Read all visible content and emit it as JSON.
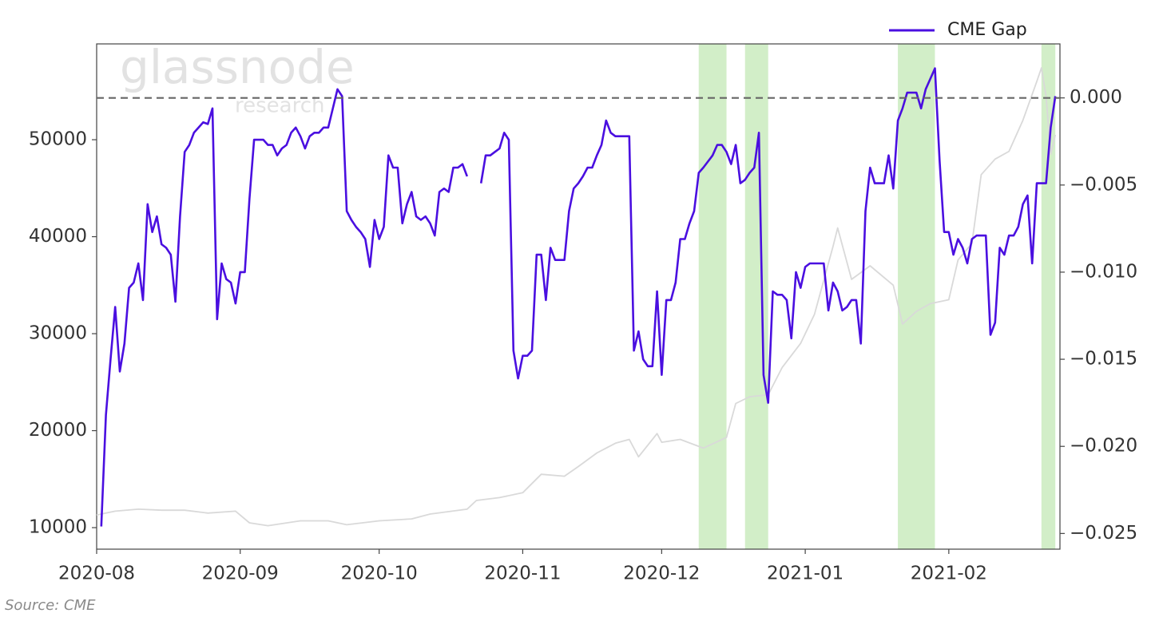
{
  "chart_data": {
    "type": "line",
    "series": [
      {
        "name": "CME Gap",
        "color": "#4a0fe0",
        "axis": "y2",
        "x": [
          "2020-08-02",
          "2020-08-03",
          "2020-08-04",
          "2020-08-05",
          "2020-08-06",
          "2020-08-07",
          "2020-08-08",
          "2020-08-09",
          "2020-08-10",
          "2020-08-11",
          "2020-08-12",
          "2020-08-13",
          "2020-08-14",
          "2020-08-15",
          "2020-08-16",
          "2020-08-17",
          "2020-08-18",
          "2020-08-19",
          "2020-08-20",
          "2020-08-21",
          "2020-08-22",
          "2020-08-23",
          "2020-08-24",
          "2020-08-25",
          "2020-08-26",
          "2020-08-27",
          "2020-08-28",
          "2020-08-29",
          "2020-08-30",
          "2020-08-31",
          "2020-09-01",
          "2020-09-02",
          "2020-09-03",
          "2020-09-04",
          "2020-09-05",
          "2020-09-06",
          "2020-09-07",
          "2020-09-08",
          "2020-09-09",
          "2020-09-10",
          "2020-09-11",
          "2020-09-12",
          "2020-09-13",
          "2020-09-14",
          "2020-09-15",
          "2020-09-16",
          "2020-09-17",
          "2020-09-18",
          "2020-09-19",
          "2020-09-20",
          "2020-09-21",
          "2020-09-22",
          "2020-09-23",
          "2020-09-24",
          "2020-09-25",
          "2020-09-26",
          "2020-09-27",
          "2020-09-28",
          "2020-09-29",
          "2020-09-30",
          "2020-10-01",
          "2020-10-02",
          "2020-10-03",
          "2020-10-04",
          "2020-10-05",
          "2020-10-06",
          "2020-10-07",
          "2020-10-08",
          "2020-10-09",
          "2020-10-10",
          "2020-10-11",
          "2020-10-12",
          "2020-10-13",
          "2020-10-14",
          "2020-10-15",
          "2020-10-16",
          "2020-10-17",
          "2020-10-18",
          "2020-10-19",
          "2020-10-20",
          "2020-10-22",
          "2020-10-23",
          "2020-10-24",
          "2020-10-25",
          "2020-10-26",
          "2020-10-27",
          "2020-10-28",
          "2020-10-29",
          "2020-10-30",
          "2020-10-31",
          "2020-11-01",
          "2020-11-02",
          "2020-11-03",
          "2020-11-04",
          "2020-11-05",
          "2020-11-06",
          "2020-11-07",
          "2020-11-08",
          "2020-11-09",
          "2020-11-10",
          "2020-11-11",
          "2020-11-12",
          "2020-11-13",
          "2020-11-14",
          "2020-11-15",
          "2020-11-16",
          "2020-11-17",
          "2020-11-18",
          "2020-11-19",
          "2020-11-20",
          "2020-11-21",
          "2020-11-22",
          "2020-11-23",
          "2020-11-24",
          "2020-11-25",
          "2020-11-26",
          "2020-11-27",
          "2020-11-28",
          "2020-11-29",
          "2020-11-30",
          "2020-12-01",
          "2020-12-02",
          "2020-12-03",
          "2020-12-04",
          "2020-12-05",
          "2020-12-06",
          "2020-12-07",
          "2020-12-08",
          "2020-12-09",
          "2020-12-10",
          "2020-12-12",
          "2020-12-13",
          "2020-12-14",
          "2020-12-15",
          "2020-12-16",
          "2020-12-17",
          "2020-12-18",
          "2020-12-19",
          "2020-12-20",
          "2020-12-21",
          "2020-12-22",
          "2020-12-23",
          "2020-12-24",
          "2020-12-25",
          "2020-12-26",
          "2020-12-27",
          "2020-12-28",
          "2020-12-29",
          "2020-12-30",
          "2020-12-31",
          "2021-01-01",
          "2021-01-02",
          "2021-01-04",
          "2021-01-05",
          "2021-01-06",
          "2021-01-07",
          "2021-01-08",
          "2021-01-09",
          "2021-01-10",
          "2021-01-11",
          "2021-01-12",
          "2021-01-13",
          "2021-01-14",
          "2021-01-15",
          "2021-01-16",
          "2021-01-17",
          "2021-01-18",
          "2021-01-19",
          "2021-01-20",
          "2021-01-21",
          "2021-01-22",
          "2021-01-23",
          "2021-01-24",
          "2021-01-25",
          "2021-01-26",
          "2021-01-27",
          "2021-01-29",
          "2021-01-30",
          "2021-01-31",
          "2021-02-01",
          "2021-02-02",
          "2021-02-03",
          "2021-02-04",
          "2021-02-05",
          "2021-02-06",
          "2021-02-07",
          "2021-02-08",
          "2021-02-09",
          "2021-02-10",
          "2021-02-11",
          "2021-02-12",
          "2021-02-13",
          "2021-02-14",
          "2021-02-15",
          "2021-02-16",
          "2021-02-17",
          "2021-02-18",
          "2021-02-19",
          "2021-02-20",
          "2021-02-21",
          "2021-02-22",
          "2021-02-23",
          "2021-02-24"
        ],
        "values": [
          -0.0246,
          -0.0182,
          -0.015,
          -0.012,
          -0.0157,
          -0.0141,
          -0.0109,
          -0.0106,
          -0.0095,
          -0.0116,
          -0.0061,
          -0.0077,
          -0.0068,
          -0.0084,
          -0.0086,
          -0.009,
          -0.0117,
          -0.0068,
          -0.0031,
          -0.0027,
          -0.002,
          -0.0017,
          -0.0014,
          -0.0015,
          -0.0006,
          -0.0127,
          -0.0095,
          -0.0104,
          -0.0106,
          -0.0118,
          -0.01,
          -0.01,
          -0.0058,
          -0.0024,
          -0.0024,
          -0.0024,
          -0.0027,
          -0.0027,
          -0.0033,
          -0.0029,
          -0.0027,
          -0.002,
          -0.0017,
          -0.0022,
          -0.0029,
          -0.0022,
          -0.002,
          -0.002,
          -0.0017,
          -0.0017,
          -0.0006,
          0.0005,
          0.0001,
          -0.0065,
          -0.007,
          -0.0074,
          -0.0077,
          -0.0081,
          -0.0097,
          -0.007,
          -0.0081,
          -0.0074,
          -0.0033,
          -0.004,
          -0.004,
          -0.0072,
          -0.0061,
          -0.0054,
          -0.0068,
          -0.007,
          -0.0068,
          -0.0072,
          -0.0079,
          -0.0054,
          -0.0052,
          -0.0054,
          -0.004,
          -0.004,
          -0.0038,
          -0.0045,
          null,
          -0.0049,
          -0.0033,
          -0.0033,
          -0.0031,
          -0.0029,
          -0.002,
          -0.0024,
          -0.0145,
          -0.0161,
          -0.0148,
          -0.0148,
          -0.0145,
          -0.009,
          -0.009,
          -0.0116,
          -0.0086,
          -0.0093,
          -0.0093,
          -0.0093,
          -0.0065,
          -0.0052,
          -0.0049,
          -0.0045,
          -0.004,
          -0.004,
          -0.0033,
          -0.0027,
          -0.0013,
          -0.002,
          -0.0022,
          -0.0022,
          -0.0022,
          -0.0022,
          -0.0145,
          -0.0134,
          -0.015,
          -0.0154,
          -0.0154,
          -0.0111,
          -0.0159,
          -0.0116,
          -0.0116,
          -0.0106,
          -0.0081,
          -0.0081,
          -0.0072,
          -0.0065,
          -0.0043,
          -0.004,
          -0.0033,
          -0.0027,
          -0.0027,
          -0.0031,
          -0.0038,
          -0.0027,
          -0.0049,
          -0.0047,
          -0.0043,
          -0.004,
          -0.002,
          -0.0159,
          -0.0175,
          -0.0111,
          -0.0113,
          -0.0113,
          -0.0116,
          -0.0138,
          -0.01,
          -0.0109,
          -0.0097,
          -0.0095,
          -0.0095,
          -0.0095,
          -0.0122,
          -0.0106,
          -0.0111,
          -0.0122,
          -0.012,
          -0.0116,
          -0.0116,
          -0.0141,
          -0.0065,
          -0.004,
          -0.0049,
          -0.0049,
          -0.0049,
          -0.0033,
          -0.0052,
          -0.0013,
          -0.0006,
          0.0003,
          0.0003,
          0.0003,
          -0.0006,
          0.0005,
          0.0017,
          -0.0036,
          -0.0077,
          -0.0077,
          -0.009,
          -0.0081,
          -0.0086,
          -0.0095,
          -0.0081,
          -0.0079,
          -0.0079,
          -0.0079,
          -0.0136,
          -0.0129,
          -0.0086,
          -0.009,
          -0.0079,
          -0.0079,
          -0.0074,
          -0.0061,
          -0.0056,
          -0.0095,
          -0.0049,
          -0.0049,
          -0.0049,
          -0.0017,
          0.0001
        ]
      },
      {
        "color": "#d9d9d9",
        "axis": "y",
        "x": [
          "2020-08-01",
          "2020-08-05",
          "2020-08-10",
          "2020-08-15",
          "2020-08-20",
          "2020-08-25",
          "2020-08-31",
          "2020-09-03",
          "2020-09-07",
          "2020-09-14",
          "2020-09-20",
          "2020-09-24",
          "2020-10-01",
          "2020-10-08",
          "2020-10-12",
          "2020-10-20",
          "2020-10-22",
          "2020-10-27",
          "2020-11-01",
          "2020-11-05",
          "2020-11-10",
          "2020-11-13",
          "2020-11-17",
          "2020-11-21",
          "2020-11-24",
          "2020-11-26",
          "2020-11-30",
          "2020-12-01",
          "2020-12-05",
          "2020-12-10",
          "2020-12-15",
          "2020-12-17",
          "2020-12-20",
          "2020-12-24",
          "2020-12-27",
          "2020-12-31",
          "2021-01-03",
          "2021-01-07",
          "2021-01-08",
          "2021-01-11",
          "2021-01-15",
          "2021-01-20",
          "2021-01-22",
          "2021-01-25",
          "2021-01-28",
          "2021-02-01",
          "2021-02-03",
          "2021-02-06",
          "2021-02-08",
          "2021-02-11",
          "2021-02-14",
          "2021-02-17",
          "2021-02-20",
          "2021-02-21",
          "2021-02-22",
          "2021-02-23",
          "2021-02-24"
        ],
        "values": [
          11300,
          11700,
          11900,
          11800,
          11800,
          11500,
          11700,
          10500,
          10200,
          10700,
          10700,
          10300,
          10700,
          10900,
          11400,
          11900,
          12800,
          13100,
          13600,
          15500,
          15300,
          16300,
          17700,
          18700,
          19100,
          17300,
          19700,
          18800,
          19100,
          18200,
          19300,
          22800,
          23500,
          23700,
          26500,
          29000,
          32000,
          39000,
          40900,
          35600,
          37000,
          35000,
          31000,
          32300,
          33100,
          33500,
          37600,
          39300,
          46400,
          48000,
          48800,
          52000,
          56000,
          57400,
          54500,
          48500,
          50500
        ]
      }
    ],
    "xlim": [
      "2020-08-01",
      "2021-02-25"
    ],
    "xticks": [
      "2020-08",
      "2020-09",
      "2020-10",
      "2020-11",
      "2020-12",
      "2021-01",
      "2021-02"
    ],
    "ylim": [
      7780,
      59880
    ],
    "yticks": [
      10000,
      20000,
      30000,
      40000,
      50000
    ],
    "y2lim": [
      -0.0259,
      0.0031
    ],
    "y2ticks": [
      {
        "value": 0,
        "label": "0.000"
      },
      {
        "value": -0.005,
        "label": "−0.005"
      },
      {
        "value": -0.01,
        "label": "−0.010"
      },
      {
        "value": -0.015,
        "label": "−0.015"
      },
      {
        "value": -0.02,
        "label": "−0.020"
      },
      {
        "value": -0.025,
        "label": "−0.025"
      }
    ],
    "hline": {
      "value": 0,
      "axis": "y2",
      "color": "#666666"
    },
    "highlight_spans": [
      [
        "2020-12-09",
        "2020-12-15"
      ],
      [
        "2020-12-19",
        "2020-12-24"
      ],
      [
        "2021-01-21",
        "2021-01-29"
      ],
      [
        "2021-02-21",
        "2021-02-24"
      ]
    ],
    "span_color": "#d2eec8",
    "legend": "upper right",
    "watermark": {
      "brand": "glassnode",
      "sub": "research"
    },
    "source": "Source: CME"
  }
}
